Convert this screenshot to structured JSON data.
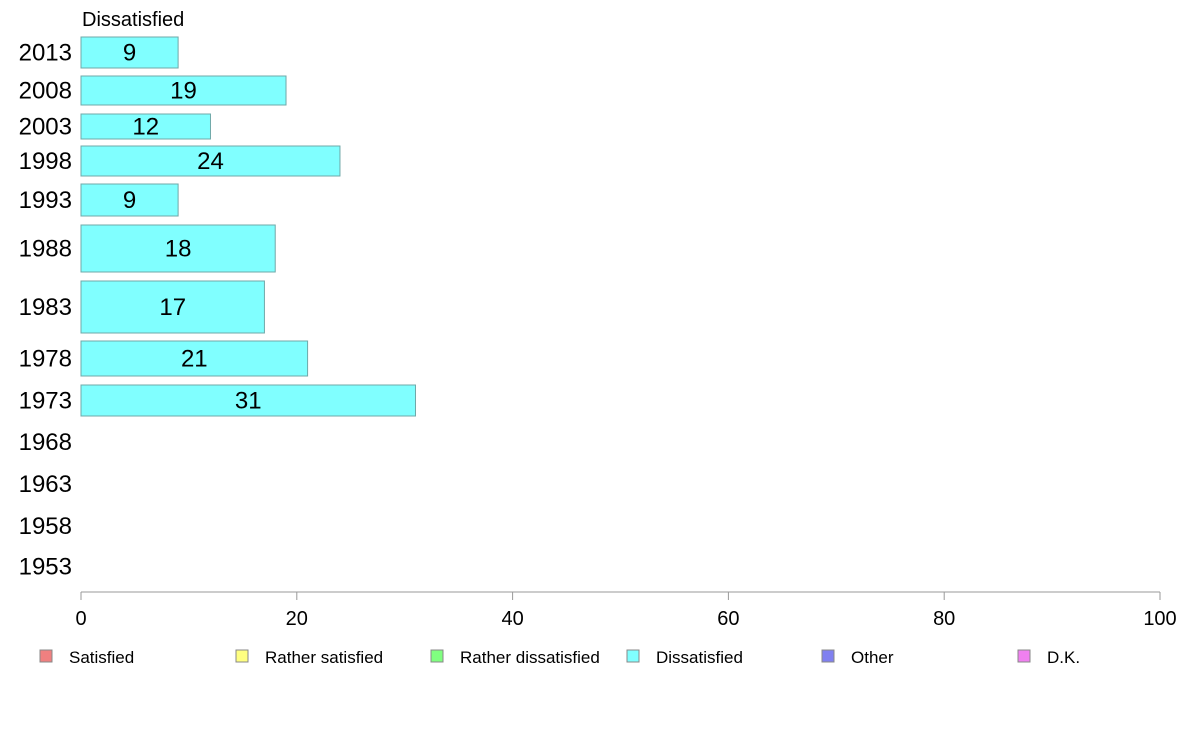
{
  "chart_data": {
    "type": "bar",
    "orientation": "horizontal",
    "title": "Dissatisfied",
    "categories": [
      "2013",
      "2008",
      "2003",
      "1998",
      "1993",
      "1988",
      "1983",
      "1978",
      "1973",
      "1968",
      "1963",
      "1958",
      "1953"
    ],
    "series": [
      {
        "name": "Dissatisfied",
        "color": "#80FFFF",
        "values": [
          9,
          19,
          12,
          24,
          9,
          18,
          17,
          21,
          31,
          null,
          null,
          null,
          null
        ]
      }
    ],
    "xlim": [
      0,
      100
    ],
    "x_ticks": [
      0,
      20,
      40,
      60,
      80,
      100
    ],
    "grid": false,
    "legend": {
      "placement": "bottom",
      "entries": [
        {
          "label": "Satisfied",
          "color": "#F08080"
        },
        {
          "label": "Rather satisfied",
          "color": "#FFFF80"
        },
        {
          "label": "Rather dissatisfied",
          "color": "#80FF80"
        },
        {
          "label": "Dissatisfied",
          "color": "#80FFFF"
        },
        {
          "label": "Other",
          "color": "#8080F0"
        },
        {
          "label": "D.K.",
          "color": "#F080F0"
        }
      ]
    }
  }
}
